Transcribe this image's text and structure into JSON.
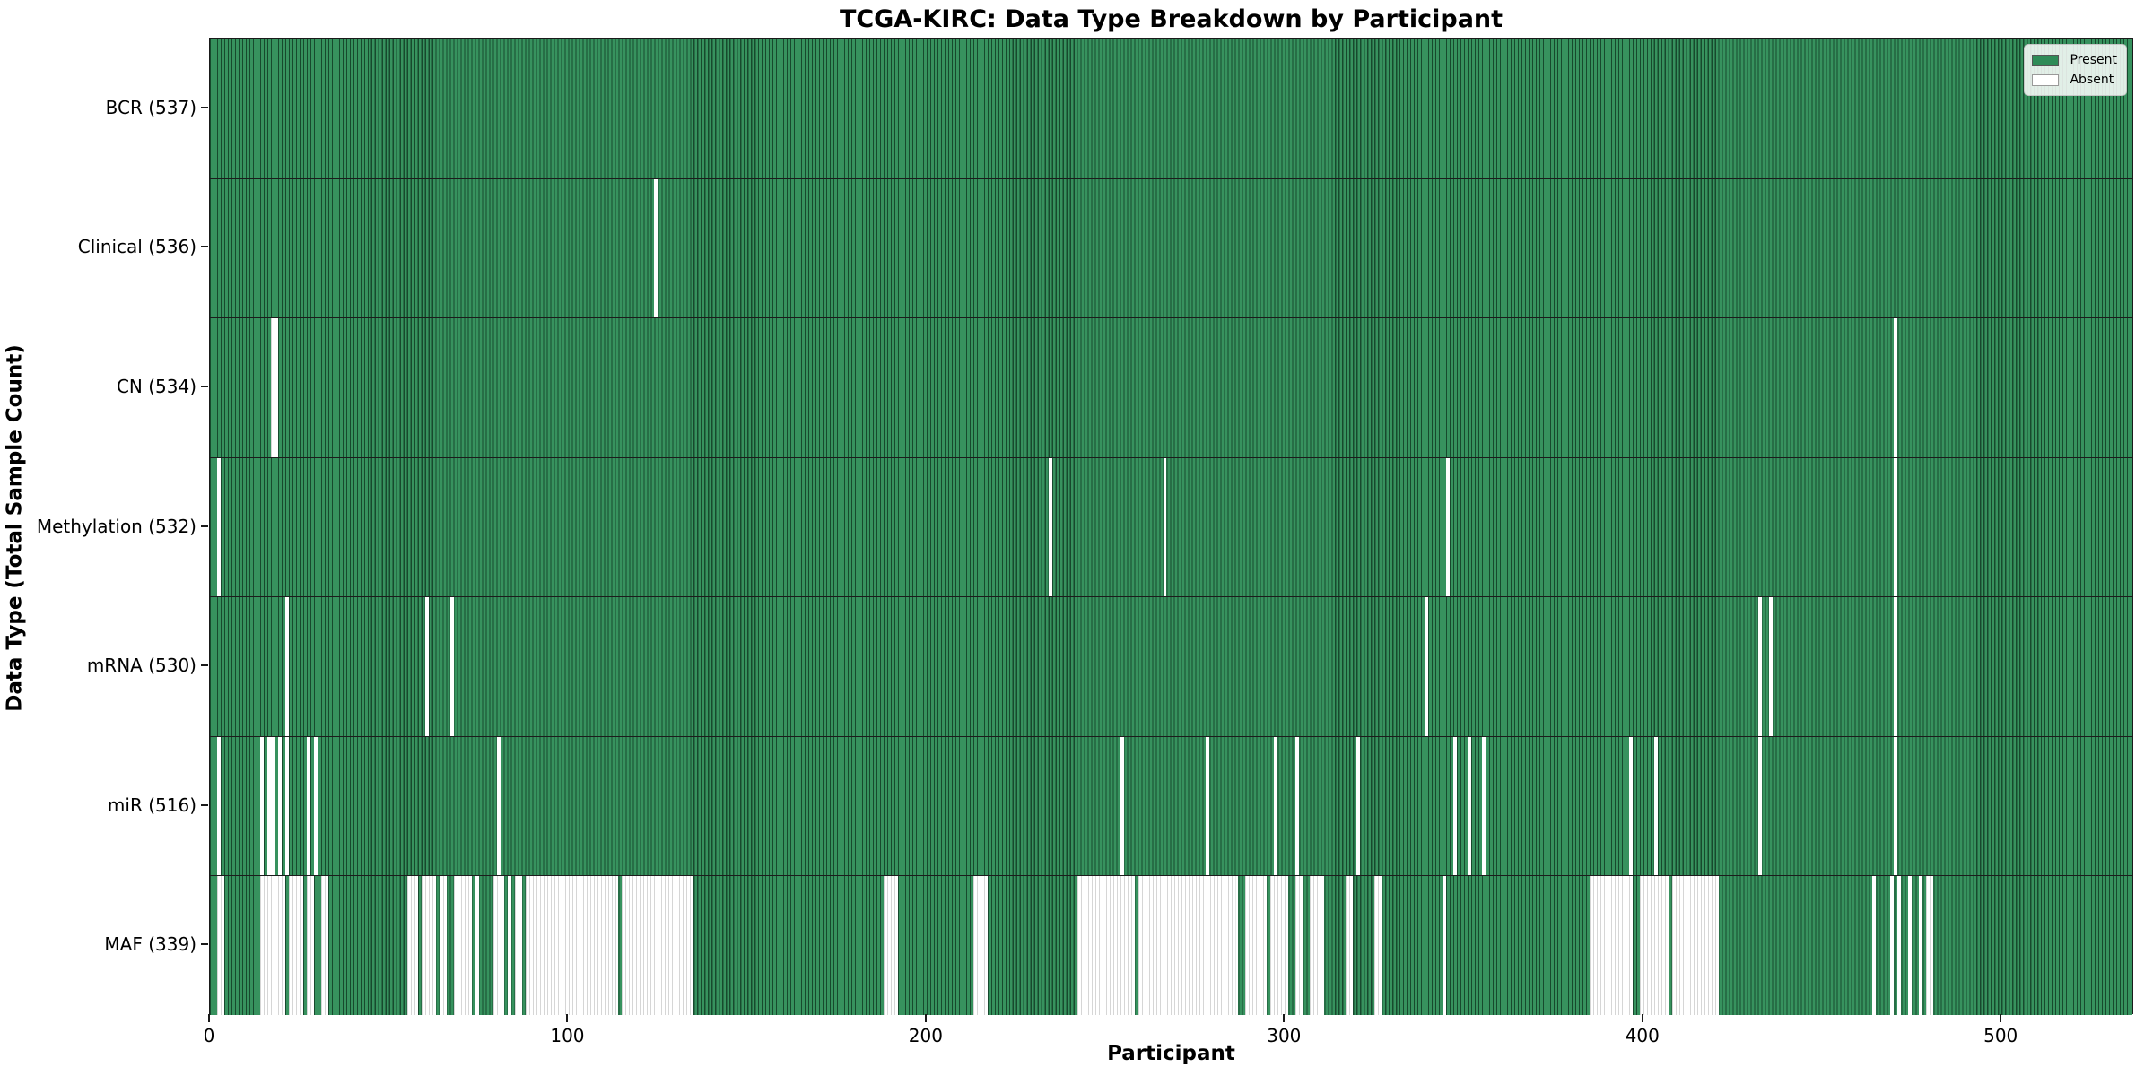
{
  "chart_data": {
    "type": "heatmap",
    "title": "TCGA-KIRC: Data Type Breakdown by Participant",
    "xlabel": "Participant",
    "ylabel": "Data Type (Total Sample Count)",
    "x_ticks": [
      0,
      100,
      200,
      300,
      400,
      500
    ],
    "x_range": [
      0,
      537
    ],
    "n_participants": 537,
    "legend_position": "upper right",
    "grid": false,
    "colors": {
      "present_fill": "#37925e",
      "present_edge": "#17492d",
      "present_legend": "#2e8b57",
      "absent_fill": "#ffffff",
      "absent_edge": "#d6d6d6",
      "separator": "#1c1c1c"
    },
    "legend": [
      {
        "label": "Present",
        "color": "#2e8b57"
      },
      {
        "label": "Absent",
        "color": "#ffffff"
      }
    ],
    "rows": [
      {
        "label": "BCR (537)",
        "data_type": "BCR",
        "present_count": 537,
        "absent_ranges": []
      },
      {
        "label": "Clinical (536)",
        "data_type": "Clinical",
        "present_count": 536,
        "absent_ranges": [
          [
            124,
            1
          ]
        ]
      },
      {
        "label": "CN (534)",
        "data_type": "CN",
        "present_count": 534,
        "absent_ranges": [
          [
            17,
            2
          ],
          [
            470,
            1
          ]
        ]
      },
      {
        "label": "Methylation (532)",
        "data_type": "Methylation",
        "present_count": 532,
        "absent_ranges": [
          [
            2,
            1
          ],
          [
            234,
            1
          ],
          [
            266,
            1
          ],
          [
            345,
            1
          ],
          [
            470,
            1
          ]
        ]
      },
      {
        "label": "mRNA (530)",
        "data_type": "mRNA",
        "present_count": 530,
        "absent_ranges": [
          [
            21,
            1
          ],
          [
            60,
            1
          ],
          [
            67,
            1
          ],
          [
            339,
            1
          ],
          [
            432,
            1
          ],
          [
            435,
            1
          ],
          [
            470,
            1
          ]
        ]
      },
      {
        "label": "miR (516)",
        "data_type": "miR",
        "present_count": 516,
        "absent_ranges": [
          [
            2,
            1
          ],
          [
            14,
            1
          ],
          [
            16,
            1
          ],
          [
            17,
            1
          ],
          [
            19,
            1
          ],
          [
            21,
            1
          ],
          [
            27,
            1
          ],
          [
            29,
            1
          ],
          [
            80,
            1
          ],
          [
            254,
            1
          ],
          [
            278,
            1
          ],
          [
            297,
            1
          ],
          [
            303,
            1
          ],
          [
            320,
            1
          ],
          [
            347,
            1
          ],
          [
            351,
            1
          ],
          [
            355,
            1
          ],
          [
            396,
            1
          ],
          [
            403,
            1
          ],
          [
            432,
            1
          ],
          [
            470,
            1
          ]
        ]
      },
      {
        "label": "MAF (339)",
        "data_type": "MAF",
        "present_count": 339,
        "absent_ranges": [
          [
            2,
            2
          ],
          [
            14,
            2
          ],
          [
            16,
            2
          ],
          [
            18,
            3
          ],
          [
            22,
            2
          ],
          [
            24,
            2
          ],
          [
            27,
            2
          ],
          [
            31,
            2
          ],
          [
            55,
            3
          ],
          [
            59,
            2
          ],
          [
            61,
            2
          ],
          [
            64,
            2
          ],
          [
            68,
            3
          ],
          [
            71,
            2
          ],
          [
            74,
            1
          ],
          [
            79,
            3
          ],
          [
            83,
            1
          ],
          [
            85,
            2
          ],
          [
            88,
            26
          ],
          [
            115,
            20
          ],
          [
            188,
            4
          ],
          [
            213,
            4
          ],
          [
            242,
            16
          ],
          [
            259,
            28
          ],
          [
            289,
            6
          ],
          [
            296,
            5
          ],
          [
            303,
            2
          ],
          [
            307,
            4
          ],
          [
            317,
            2
          ],
          [
            325,
            2
          ],
          [
            344,
            1
          ],
          [
            385,
            12
          ],
          [
            399,
            8
          ],
          [
            408,
            13
          ],
          [
            464,
            1
          ],
          [
            469,
            1
          ],
          [
            471,
            1
          ],
          [
            474,
            1
          ],
          [
            477,
            1
          ],
          [
            479,
            2
          ]
        ]
      }
    ]
  }
}
